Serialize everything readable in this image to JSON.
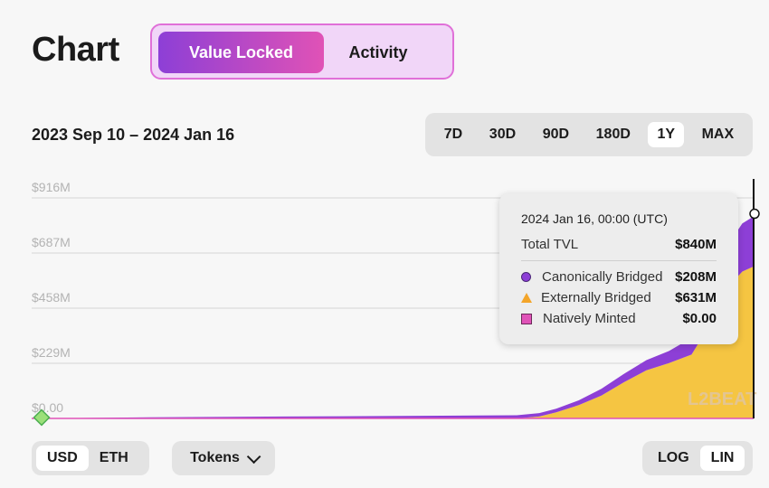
{
  "header": {
    "title": "Chart"
  },
  "mode_tabs": {
    "active": "Value Locked",
    "inactive": "Activity"
  },
  "date_range": "2023 Sep 10 – 2024 Jan 16",
  "periods": [
    "7D",
    "30D",
    "90D",
    "180D",
    "1Y",
    "MAX"
  ],
  "active_period": "1Y",
  "currency": {
    "options": [
      "USD",
      "ETH"
    ],
    "active": "USD"
  },
  "tokens_label": "Tokens",
  "scale": {
    "options": [
      "LOG",
      "LIN"
    ],
    "active": "LIN"
  },
  "watermark": "L2BEAT",
  "tooltip": {
    "date": "2024 Jan 16, 00:00 (UTC)",
    "total_label": "Total TVL",
    "total_value": "$840M",
    "rows": [
      {
        "label": "Canonically Bridged",
        "value": "$208M"
      },
      {
        "label": "Externally Bridged",
        "value": "$631M"
      },
      {
        "label": "Natively Minted",
        "value": "$0.00"
      }
    ]
  },
  "colors": {
    "canonical": "#8d3fd6",
    "external": "#f5c542",
    "native": "#e053b8",
    "accent": "#e070d8"
  },
  "chart_data": {
    "type": "area",
    "stacked": true,
    "x": [
      "2023-09-10",
      "2023-10-01",
      "2023-10-25",
      "2023-11-15",
      "2023-11-28",
      "2023-12-05",
      "2023-12-09",
      "2023-12-12",
      "2023-12-16",
      "2023-12-20",
      "2023-12-24",
      "2023-12-28",
      "2024-01-01",
      "2024-01-05",
      "2024-01-08",
      "2024-01-10",
      "2024-01-12",
      "2024-01-14",
      "2024-01-16"
    ],
    "series": [
      {
        "name": "Externally Bridged",
        "values": [
          0,
          0,
          0,
          0,
          0,
          0,
          8,
          25,
          55,
          95,
          150,
          200,
          230,
          265,
          380,
          480,
          560,
          610,
          631
        ]
      },
      {
        "name": "Canonically Bridged",
        "values": [
          0,
          5,
          8,
          10,
          12,
          13,
          14,
          15,
          20,
          28,
          35,
          42,
          50,
          70,
          110,
          150,
          180,
          200,
          208
        ]
      },
      {
        "name": "Natively Minted",
        "values": [
          0,
          0,
          0,
          0,
          0,
          0,
          0,
          0,
          0,
          0,
          0,
          0,
          0,
          0,
          0,
          0,
          0,
          0,
          0
        ]
      }
    ],
    "yticks": [
      "$0.00",
      "$229M",
      "$458M",
      "$687M",
      "$916M"
    ],
    "ylim": [
      0,
      916
    ]
  }
}
